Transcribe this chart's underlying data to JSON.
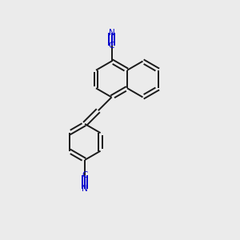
{
  "background_color": "#ebebeb",
  "bond_color": "#1a1a1a",
  "cn_color": "#0000cc",
  "lw": 1.4,
  "dbo": 0.008,
  "figsize": [
    3.0,
    3.0
  ],
  "dpi": 100,
  "xlim": [
    0.0,
    1.0
  ],
  "ylim": [
    0.0,
    1.0
  ]
}
